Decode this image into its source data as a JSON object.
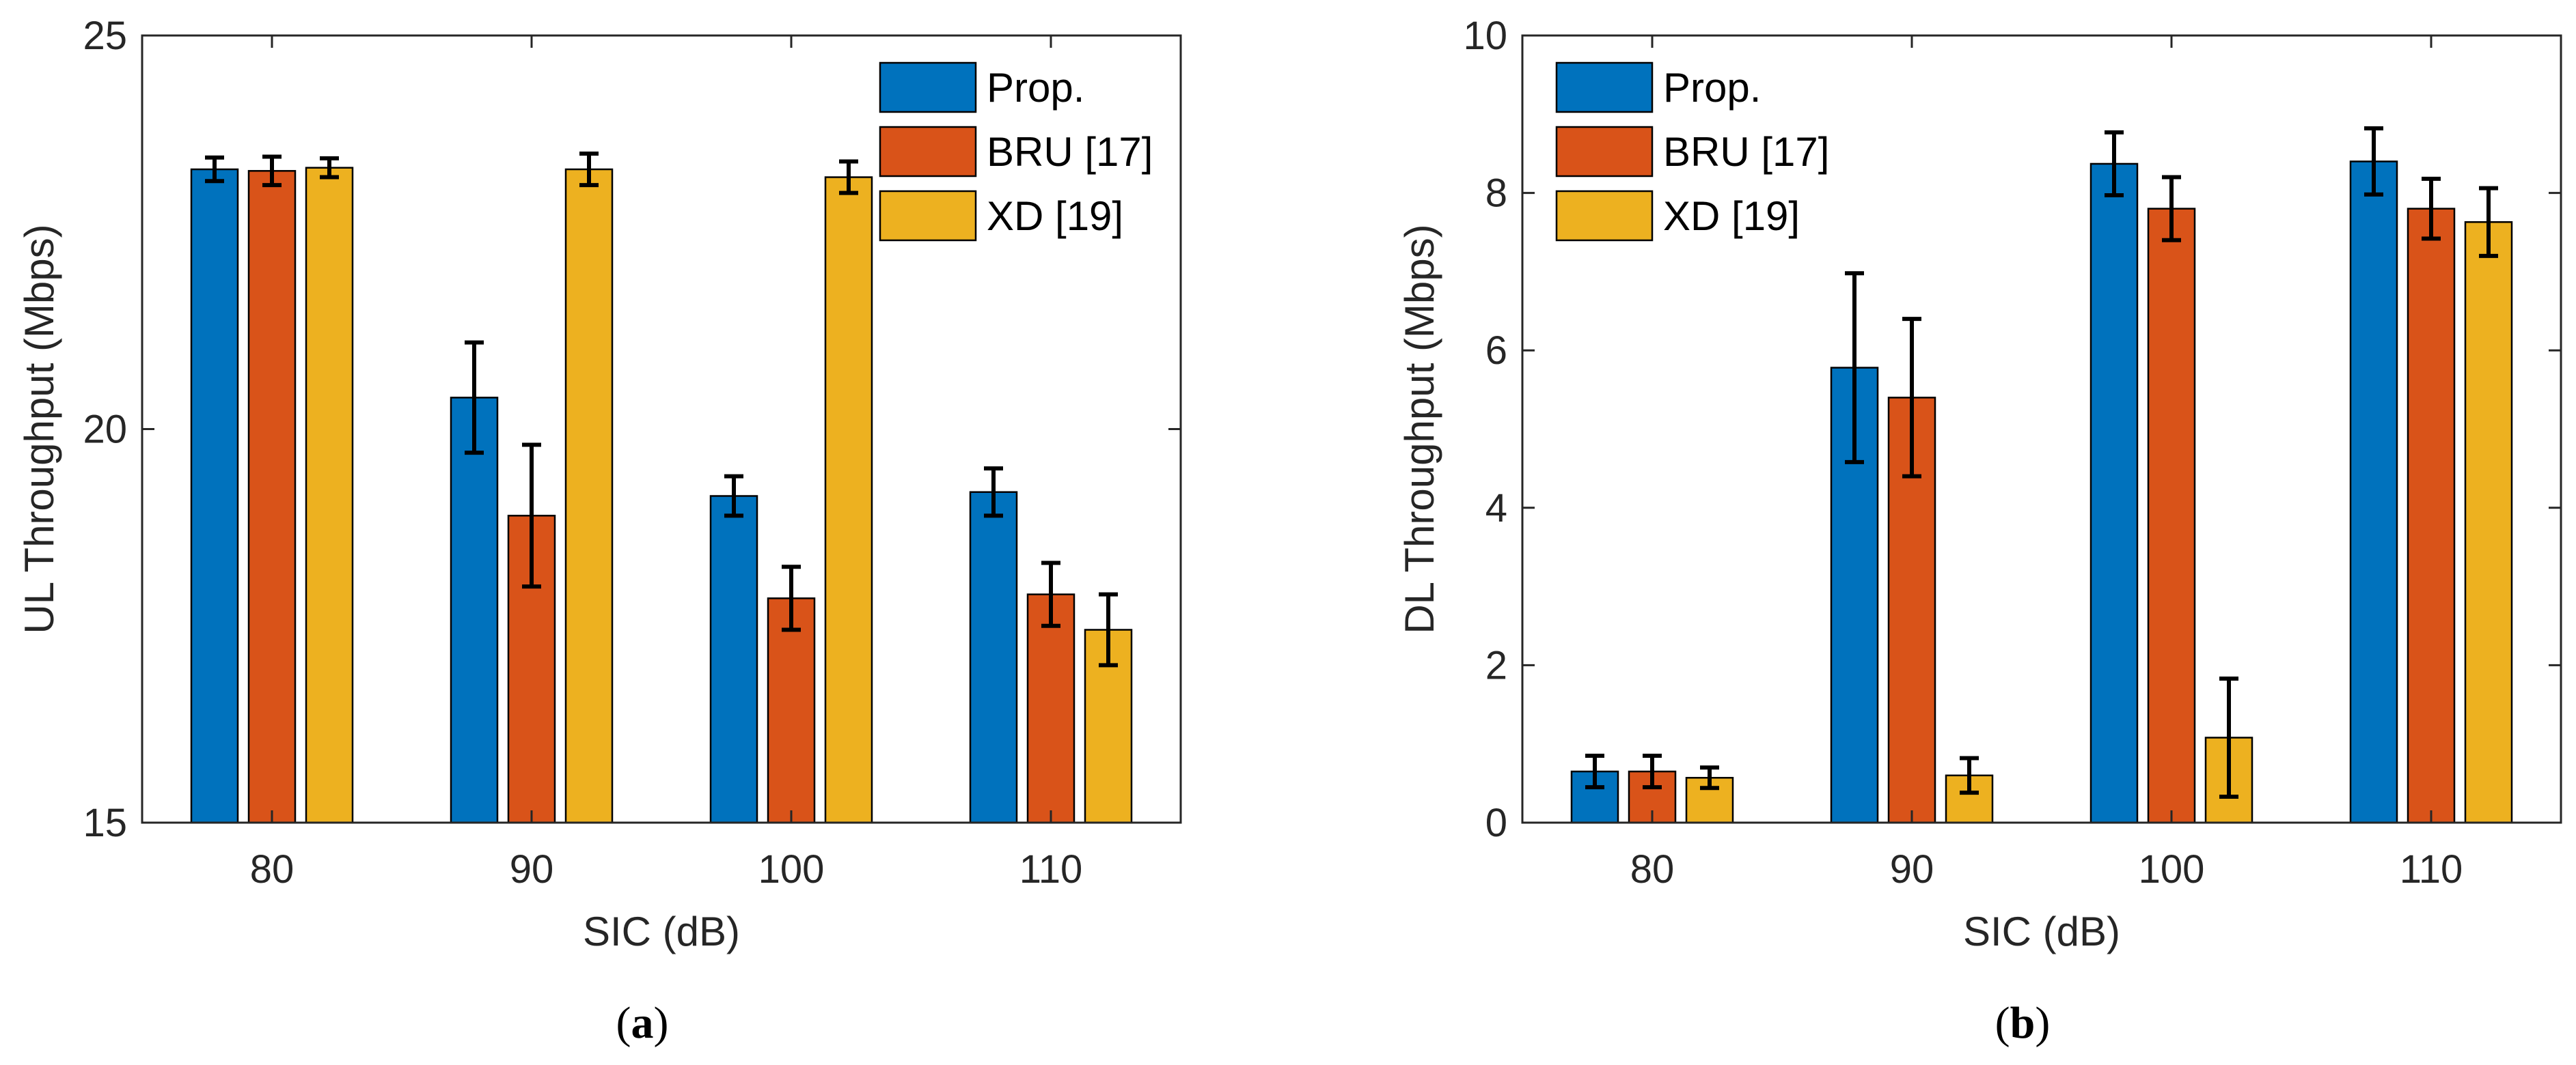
{
  "figure": {
    "left_caption": "(a)",
    "right_caption": "(b)"
  },
  "colors": {
    "prop": "#0072BD",
    "bru": "#D95319",
    "xd": "#EDB120",
    "errorbar": "#000000",
    "axes": "#262626"
  },
  "chart_data": [
    {
      "type": "bar",
      "panel": "a",
      "title": "",
      "xlabel": "SIC (dB)",
      "ylabel": "UL Throughput (Mbps)",
      "categories": [
        "80",
        "90",
        "100",
        "110"
      ],
      "ylim": [
        15,
        25
      ],
      "yticks": [
        15,
        20,
        25
      ],
      "grid": false,
      "legend_position": "top-right",
      "series": [
        {
          "name": "Prop.",
          "color": "#0072BD",
          "values": [
            23.3,
            20.4,
            19.15,
            19.2
          ],
          "err_low": [
            0.15,
            0.7,
            0.25,
            0.3
          ],
          "err_high": [
            0.15,
            0.7,
            0.25,
            0.3
          ]
        },
        {
          "name": "BRU [17]",
          "color": "#D95319",
          "values": [
            23.28,
            18.9,
            17.85,
            17.9
          ],
          "err_low": [
            0.18,
            0.9,
            0.4,
            0.4
          ],
          "err_high": [
            0.18,
            0.9,
            0.4,
            0.4
          ]
        },
        {
          "name": "XD [19]",
          "color": "#EDB120",
          "values": [
            23.32,
            23.3,
            23.2,
            17.45
          ],
          "err_low": [
            0.12,
            0.2,
            0.2,
            0.45
          ],
          "err_high": [
            0.12,
            0.2,
            0.2,
            0.45
          ]
        }
      ]
    },
    {
      "type": "bar",
      "panel": "b",
      "title": "",
      "xlabel": "SIC (dB)",
      "ylabel": "DL Throughput (Mbps)",
      "categories": [
        "80",
        "90",
        "100",
        "110"
      ],
      "ylim": [
        0,
        10
      ],
      "yticks": [
        0,
        2,
        4,
        6,
        8,
        10
      ],
      "grid": false,
      "legend_position": "top-left",
      "series": [
        {
          "name": "Prop.",
          "color": "#0072BD",
          "values": [
            0.65,
            5.78,
            8.37,
            8.4
          ],
          "err_low": [
            0.2,
            1.2,
            0.4,
            0.42
          ],
          "err_high": [
            0.2,
            1.2,
            0.4,
            0.42
          ]
        },
        {
          "name": "BRU [17]",
          "color": "#D95319",
          "values": [
            0.65,
            5.4,
            7.8,
            7.8
          ],
          "err_low": [
            0.2,
            1.0,
            0.4,
            0.38
          ],
          "err_high": [
            0.2,
            1.0,
            0.4,
            0.38
          ]
        },
        {
          "name": "XD [19]",
          "color": "#EDB120",
          "values": [
            0.57,
            0.6,
            1.08,
            7.63
          ],
          "err_low": [
            0.13,
            0.22,
            0.75,
            0.43
          ],
          "err_high": [
            0.13,
            0.22,
            0.75,
            0.43
          ]
        }
      ]
    }
  ]
}
